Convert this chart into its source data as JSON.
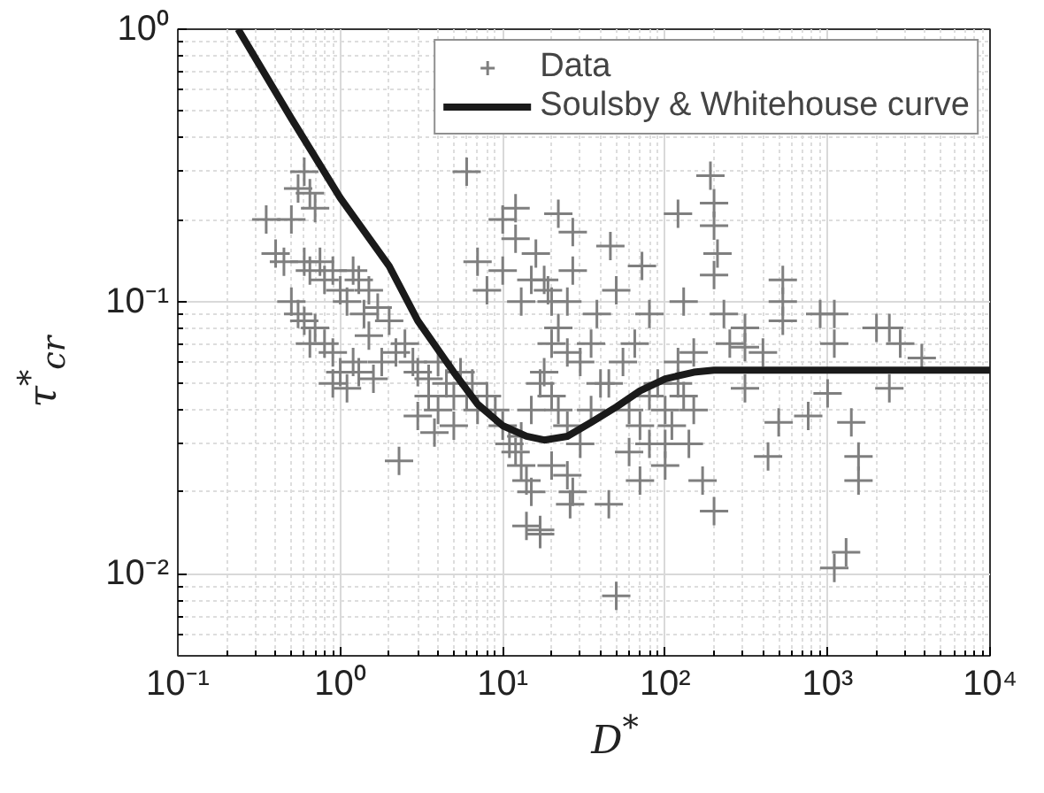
{
  "chart_data": {
    "type": "scatter",
    "xlabel": "D$^{*}$",
    "ylabel": "τ$^{*}$$_{cr}$",
    "log": "xy",
    "grid": true,
    "legend": "top right",
    "marker": "cross",
    "xlim": [
      0.1,
      10000
    ],
    "ylim": [
      0.005,
      1
    ],
    "xticks": [
      {
        "value": 0.1,
        "label": "10⁻¹"
      },
      {
        "value": 1,
        "label": "10⁰"
      },
      {
        "value": 10,
        "label": "10¹"
      },
      {
        "value": 100,
        "label": "10²"
      },
      {
        "value": 1000,
        "label": "10³"
      },
      {
        "value": 10000,
        "label": "10⁴"
      }
    ],
    "yticks": [
      {
        "value": 0.01,
        "label": "10⁻²"
      },
      {
        "value": 0.1,
        "label": "10⁻¹"
      },
      {
        "value": 1,
        "label": "10⁰"
      }
    ],
    "series": [
      {
        "name": "Data",
        "color": "#7f7f7f",
        "x": [
          0.35,
          0.4,
          0.45,
          0.5,
          0.55,
          0.6,
          0.65,
          0.7,
          0.6,
          0.65,
          0.75,
          0.8,
          0.9,
          0.5,
          0.55,
          0.6,
          0.7,
          0.65,
          0.8,
          0.9,
          1.0,
          1.1,
          1.2,
          1.3,
          1.5,
          1.4,
          1.7,
          2.0,
          1.5,
          1.2,
          1.0,
          1.3,
          1.8,
          2.2,
          2.5,
          2.8,
          3,
          3.5,
          2.3,
          1.6,
          0.9,
          1.1,
          4,
          4.5,
          5,
          5.5,
          6,
          6.5,
          7,
          3.5,
          4,
          5,
          3,
          3.8,
          8,
          9,
          10,
          11,
          12,
          13,
          14,
          15,
          13,
          15,
          17,
          18,
          20,
          22,
          25,
          20,
          25,
          27,
          30,
          35,
          40,
          30,
          35,
          25,
          20,
          14,
          17,
          7,
          8,
          10,
          12,
          6,
          13,
          15,
          16,
          18,
          20,
          22,
          25,
          12,
          10,
          22,
          27,
          27,
          19,
          46,
          72,
          50,
          38,
          80,
          120,
          190,
          200,
          200,
          210,
          200,
          130,
          230,
          310,
          310,
          530,
          530,
          530,
          900,
          1100,
          1100,
          2000,
          2800,
          3800,
          310,
          500,
          430,
          760,
          1000,
          1400,
          1550,
          1550,
          1300,
          1100,
          50,
          17,
          200,
          170,
          100,
          45,
          26,
          2400,
          2400,
          60,
          70,
          80,
          90,
          100,
          110,
          120,
          130,
          150,
          60,
          80,
          100,
          140,
          70,
          120,
          150,
          45,
          55,
          65,
          250,
          400
        ],
        "values": [
          0.2,
          0.15,
          0.14,
          0.2,
          0.26,
          0.3,
          0.25,
          0.22,
          0.14,
          0.13,
          0.14,
          0.12,
          0.13,
          0.1,
          0.09,
          0.085,
          0.08,
          0.07,
          0.07,
          0.065,
          0.11,
          0.1,
          0.13,
          0.12,
          0.11,
          0.09,
          0.095,
          0.085,
          0.075,
          0.06,
          0.055,
          0.055,
          0.06,
          0.065,
          0.07,
          0.06,
          0.055,
          0.052,
          0.026,
          0.052,
          0.05,
          0.048,
          0.06,
          0.05,
          0.045,
          0.055,
          0.045,
          0.05,
          0.04,
          0.045,
          0.04,
          0.035,
          0.038,
          0.033,
          0.045,
          0.04,
          0.035,
          0.03,
          0.028,
          0.025,
          0.022,
          0.02,
          0.032,
          0.04,
          0.05,
          0.055,
          0.045,
          0.04,
          0.035,
          0.025,
          0.023,
          0.02,
          0.03,
          0.04,
          0.05,
          0.06,
          0.07,
          0.065,
          0.07,
          0.015,
          0.014,
          0.14,
          0.11,
          0.2,
          0.22,
          0.3,
          0.1,
          0.12,
          0.15,
          0.12,
          0.1,
          0.08,
          0.1,
          0.17,
          0.13,
          0.21,
          0.18,
          0.13,
          0.11,
          0.16,
          0.135,
          0.11,
          0.09,
          0.09,
          0.21,
          0.29,
          0.23,
          0.19,
          0.15,
          0.125,
          0.1,
          0.09,
          0.08,
          0.068,
          0.12,
          0.1,
          0.085,
          0.09,
          0.09,
          0.07,
          0.08,
          0.07,
          0.062,
          0.048,
          0.036,
          0.027,
          0.038,
          0.046,
          0.036,
          0.027,
          0.022,
          0.012,
          0.0105,
          0.0083,
          0.0145,
          0.017,
          0.022,
          0.025,
          0.018,
          0.018,
          0.048,
          0.08,
          0.04,
          0.035,
          0.045,
          0.05,
          0.04,
          0.035,
          0.05,
          0.045,
          0.04,
          0.028,
          0.03,
          0.03,
          0.03,
          0.022,
          0.06,
          0.065,
          0.05,
          0.06,
          0.07,
          0.07,
          0.065
        ]
      },
      {
        "name": "Soulsby & Whitehouse curve",
        "type": "line",
        "marker": "none",
        "color": "#1a1a1a",
        "x": [
          0.235,
          0.5,
          1,
          2,
          3,
          5,
          7,
          10,
          14,
          18,
          25,
          35,
          50,
          70,
          100,
          150,
          200,
          500,
          10000
        ],
        "values": [
          1,
          0.47,
          0.24,
          0.135,
          0.085,
          0.055,
          0.042,
          0.035,
          0.032,
          0.031,
          0.032,
          0.036,
          0.041,
          0.047,
          0.052,
          0.055,
          0.056,
          0.056,
          0.056
        ]
      }
    ]
  }
}
